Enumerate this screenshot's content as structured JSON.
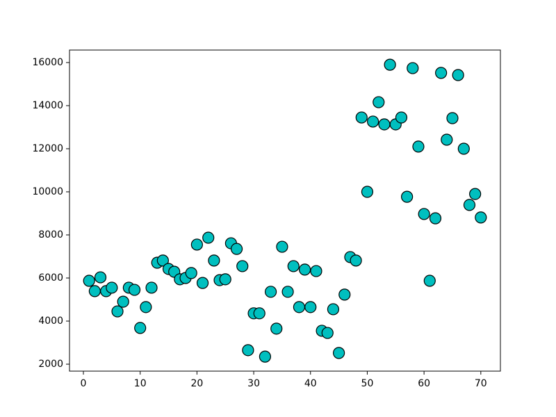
{
  "chart_data": {
    "type": "scatter",
    "x": [
      1,
      2,
      3,
      4,
      5,
      6,
      7,
      8,
      9,
      10,
      11,
      12,
      13,
      14,
      15,
      16,
      17,
      18,
      19,
      20,
      21,
      22,
      23,
      24,
      25,
      26,
      27,
      28,
      29,
      30,
      31,
      32,
      33,
      34,
      35,
      36,
      37,
      38,
      39,
      40,
      41,
      42,
      43,
      44,
      45,
      46,
      47,
      48,
      49,
      50,
      51,
      52,
      53,
      54,
      55,
      56,
      57,
      58,
      59,
      60,
      61,
      62,
      63,
      64,
      65,
      66,
      67,
      68,
      69,
      70
    ],
    "values": [
      5870,
      5390,
      6030,
      5390,
      5550,
      4450,
      4900,
      5550,
      5450,
      3680,
      4650,
      5550,
      6710,
      6810,
      6420,
      6290,
      5940,
      6000,
      6230,
      7550,
      5770,
      7870,
      6810,
      5900,
      5940,
      7610,
      7350,
      6550,
      2650,
      4360,
      4360,
      2350,
      5360,
      3650,
      7450,
      5360,
      6550,
      4650,
      6390,
      4650,
      6320,
      3550,
      3450,
      4550,
      2520,
      5230,
      6970,
      6810,
      13450,
      10000,
      13260,
      14160,
      13130,
      15900,
      13130,
      13450,
      9770,
      15740,
      12100,
      8970,
      5870,
      8770,
      15520,
      12420,
      13420,
      15420,
      12000,
      9390,
      9900,
      8810
    ],
    "color": "#00bfbf",
    "edgecolor": "#000000",
    "xlim": [
      -2.45,
      73.45
    ],
    "ylim": [
      1677,
      16581
    ],
    "xticks": [
      0,
      10,
      20,
      30,
      40,
      50,
      60,
      70
    ],
    "yticks": [
      2000,
      4000,
      6000,
      8000,
      10000,
      12000,
      14000,
      16000
    ]
  }
}
